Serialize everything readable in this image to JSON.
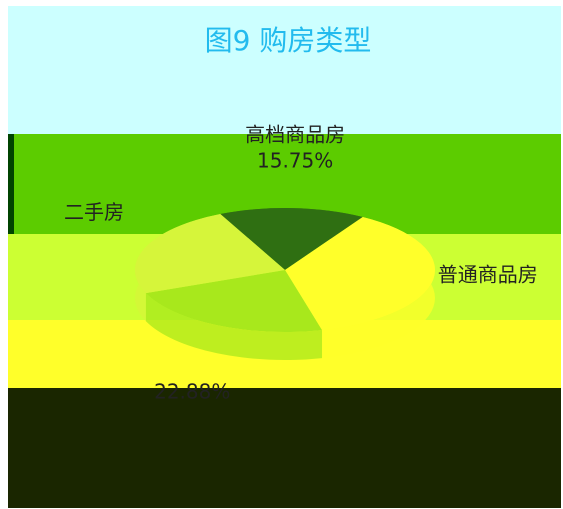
{
  "chart_data": {
    "type": "pie",
    "title": "图9 购房类型",
    "categories": [
      "高档商品房",
      "普通商品房",
      null,
      "二手房"
    ],
    "values": [
      15.75,
      37.37,
      22.88,
      24
    ],
    "value_labels": [
      "15.75%",
      null,
      "22.88%",
      null
    ],
    "colors": [
      "#2f6f12",
      "#ffff2a",
      "#a8e81c",
      "#d6f53a"
    ]
  }
}
